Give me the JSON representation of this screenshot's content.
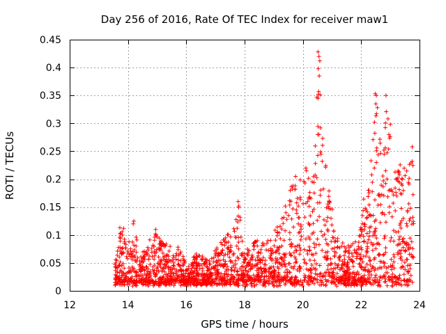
{
  "chart_data": {
    "type": "scatter",
    "title": "Day 256 of 2016, Rate Of TEC Index for receiver maw1",
    "xlabel": "GPS time / hours",
    "ylabel": "ROTI / TECUs",
    "xlim": [
      12,
      24
    ],
    "ylim": [
      0,
      0.45
    ],
    "x_ticks": [
      12,
      14,
      16,
      18,
      20,
      22,
      24
    ],
    "y_ticks": [
      0,
      0.05,
      0.1,
      0.15,
      0.2,
      0.25,
      0.3,
      0.35,
      0.4,
      0.45
    ],
    "x_tick_labels": [
      "12",
      "14",
      "16",
      "18",
      "20",
      "22",
      "24"
    ],
    "y_tick_labels": [
      "0",
      "0.05",
      "0.1",
      "0.15",
      "0.2",
      "0.25",
      "0.3",
      "0.35",
      "0.4",
      "0.45"
    ],
    "grid": true,
    "marker": "+",
    "marker_color": "#ff0000",
    "series": [
      {
        "name": "maw1",
        "x_range": [
          13.55,
          23.8
        ],
        "envelope": [
          [
            13.6,
            0.06
          ],
          [
            13.75,
            0.115
          ],
          [
            14.0,
            0.08
          ],
          [
            14.2,
            0.125
          ],
          [
            14.4,
            0.06
          ],
          [
            14.6,
            0.08
          ],
          [
            14.9,
            0.11
          ],
          [
            15.2,
            0.09
          ],
          [
            15.5,
            0.085
          ],
          [
            15.8,
            0.08
          ],
          [
            16.05,
            0.04
          ],
          [
            16.3,
            0.07
          ],
          [
            16.7,
            0.06
          ],
          [
            17.0,
            0.075
          ],
          [
            17.3,
            0.095
          ],
          [
            17.6,
            0.12
          ],
          [
            17.8,
            0.16
          ],
          [
            18.0,
            0.08
          ],
          [
            18.4,
            0.09
          ],
          [
            18.8,
            0.09
          ],
          [
            19.0,
            0.11
          ],
          [
            19.3,
            0.14
          ],
          [
            19.6,
            0.2
          ],
          [
            19.8,
            0.19
          ],
          [
            20.1,
            0.22
          ],
          [
            20.35,
            0.2
          ],
          [
            20.55,
            0.43
          ],
          [
            20.7,
            0.25
          ],
          [
            20.9,
            0.2
          ],
          [
            21.1,
            0.1
          ],
          [
            21.5,
            0.08
          ],
          [
            21.8,
            0.09
          ],
          [
            22.1,
            0.17
          ],
          [
            22.3,
            0.22
          ],
          [
            22.5,
            0.355
          ],
          [
            22.7,
            0.26
          ],
          [
            22.85,
            0.35
          ],
          [
            22.95,
            0.31
          ],
          [
            23.1,
            0.28
          ],
          [
            23.3,
            0.25
          ],
          [
            23.5,
            0.22
          ],
          [
            23.7,
            0.26
          ],
          [
            23.8,
            0.22
          ]
        ],
        "highlights": [
          [
            20.52,
            0.428
          ],
          [
            20.55,
            0.42
          ],
          [
            20.58,
            0.412
          ],
          [
            20.53,
            0.398
          ],
          [
            20.56,
            0.385
          ],
          [
            20.54,
            0.357
          ],
          [
            20.52,
            0.345
          ],
          [
            20.55,
            0.28
          ],
          [
            20.62,
            0.245
          ],
          [
            22.48,
            0.353
          ],
          [
            22.52,
            0.35
          ],
          [
            22.5,
            0.335
          ],
          [
            22.85,
            0.35
          ],
          [
            22.92,
            0.308
          ],
          [
            23.0,
            0.298
          ],
          [
            22.95,
            0.28
          ],
          [
            23.75,
            0.258
          ],
          [
            17.78,
            0.16
          ],
          [
            17.8,
            0.152
          ],
          [
            14.2,
            0.125
          ],
          [
            14.18,
            0.12
          ],
          [
            13.72,
            0.113
          ],
          [
            13.85,
            0.112
          ],
          [
            14.95,
            0.11
          ],
          [
            20.1,
            0.22
          ],
          [
            20.12,
            0.215
          ],
          [
            19.75,
            0.205
          ],
          [
            22.45,
            0.22
          ]
        ]
      }
    ]
  }
}
